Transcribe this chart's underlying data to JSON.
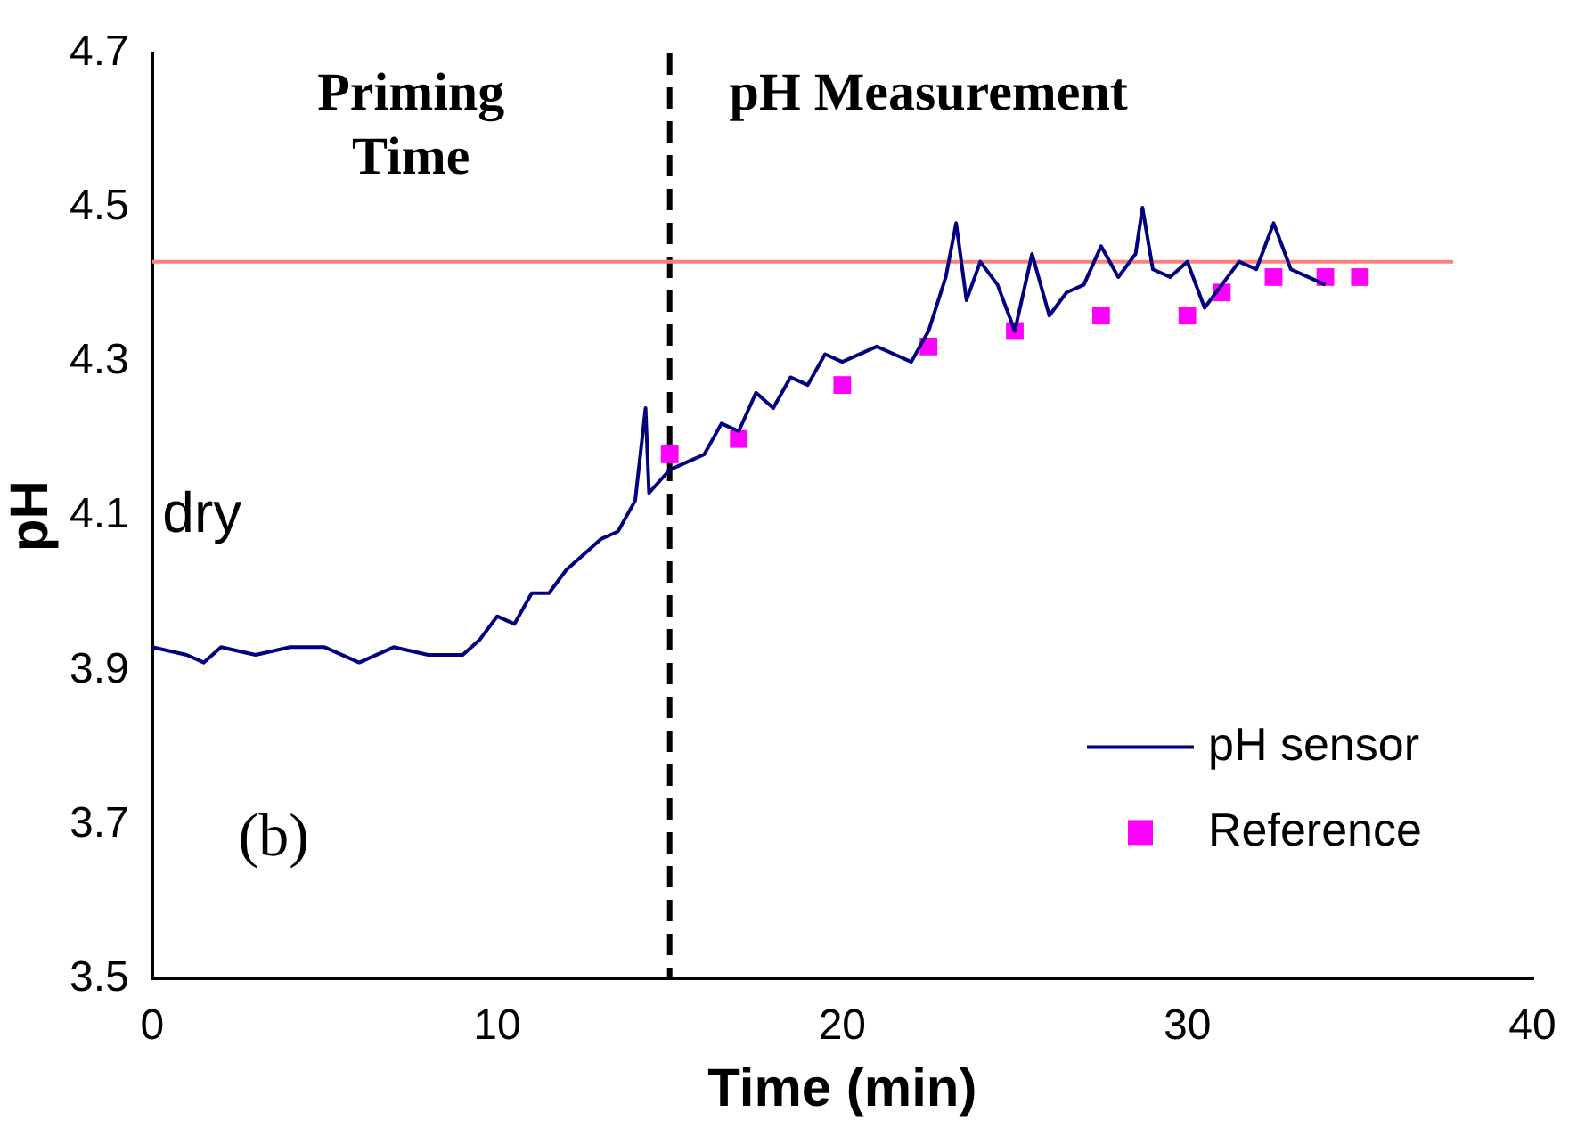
{
  "chart_data": {
    "type": "line",
    "xlabel": "Time (min)",
    "ylabel": "pH",
    "xlim": [
      0,
      40
    ],
    "xticks": [
      0,
      10,
      20,
      30,
      40
    ],
    "ylim": [
      3.5,
      4.7
    ],
    "yticks": [
      {
        "value": 3.5,
        "label": "3.5"
      },
      {
        "value": 3.7,
        "label": "3.7"
      },
      {
        "value": 3.9,
        "label": "3.9"
      },
      {
        "value": 4.1,
        "label": "4.1"
      },
      {
        "value": 4.3,
        "label": "4.3"
      },
      {
        "value": 4.5,
        "label": "4.5"
      },
      {
        "value": 4.7,
        "label": "4.7"
      }
    ],
    "grid": false,
    "legend": "bottom right",
    "line_style": "solid",
    "series": [
      {
        "name": "pH sensor",
        "marker": "none",
        "color": "#000080",
        "x": [
          0,
          1,
          1.5,
          2,
          3,
          4,
          5,
          6,
          7,
          8,
          9,
          9.5,
          10,
          10.5,
          11,
          11.5,
          12,
          12.5,
          13,
          13.5,
          14,
          14.3,
          14.4,
          15,
          15.5,
          16,
          16.5,
          17,
          17.5,
          18,
          18.5,
          19,
          19.5,
          20,
          21,
          21.5,
          22,
          22.5,
          23,
          23.3,
          23.6,
          24,
          24.5,
          25,
          25.5,
          26,
          26.5,
          27,
          27.5,
          28,
          28.5,
          28.7,
          29,
          29.5,
          30,
          30.5,
          31,
          31.5,
          32,
          32.5,
          33,
          33.5,
          34
        ],
        "values": [
          3.93,
          3.92,
          3.91,
          3.93,
          3.92,
          3.93,
          3.93,
          3.91,
          3.93,
          3.92,
          3.92,
          3.94,
          3.97,
          3.96,
          4.0,
          4.0,
          4.03,
          4.05,
          4.07,
          4.08,
          4.12,
          4.24,
          4.13,
          4.16,
          4.17,
          4.18,
          4.22,
          4.21,
          4.26,
          4.24,
          4.28,
          4.27,
          4.31,
          4.3,
          4.32,
          4.31,
          4.3,
          4.34,
          4.41,
          4.48,
          4.38,
          4.43,
          4.4,
          4.34,
          4.44,
          4.36,
          4.39,
          4.4,
          4.45,
          4.41,
          4.44,
          4.5,
          4.42,
          4.41,
          4.43,
          4.37,
          4.4,
          4.43,
          4.42,
          4.48,
          4.42,
          4.41,
          4.4
        ]
      },
      {
        "name": "Reference",
        "type": "scatter",
        "marker": "square",
        "color": "#ff00ff",
        "x": [
          15,
          17,
          20,
          22.5,
          25,
          27.5,
          30,
          31,
          32.5,
          34,
          35
        ],
        "values": [
          4.18,
          4.2,
          4.27,
          4.32,
          4.34,
          4.36,
          4.36,
          4.39,
          4.41,
          4.41,
          4.41
        ]
      },
      {
        "marker": "none",
        "color": "#ff7f7f",
        "x": [
          0,
          37.7
        ],
        "values": [
          4.43,
          4.43
        ]
      }
    ],
    "ref_lines": [
      {
        "axis": "x",
        "value": 15,
        "color": "#000000",
        "line_style": "dashed"
      }
    ],
    "annotations": [
      "Priming Time",
      "pH Measurement",
      "dry",
      "(b)"
    ]
  }
}
